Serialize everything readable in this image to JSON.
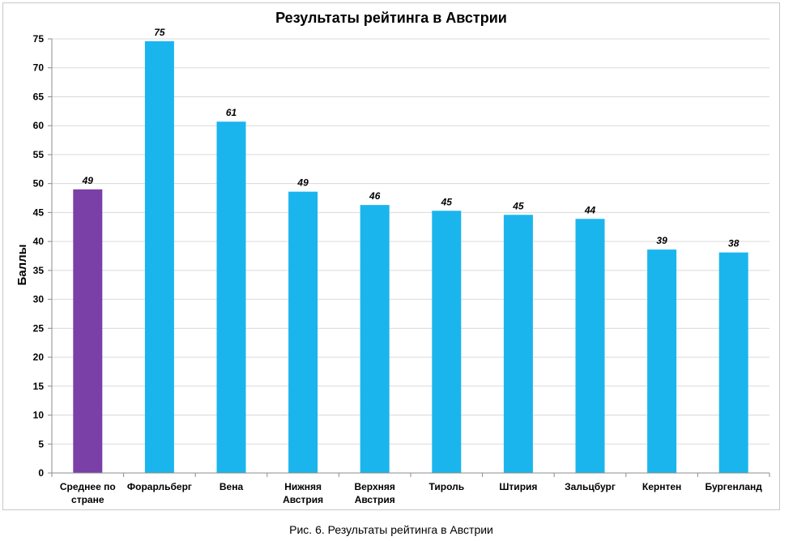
{
  "caption": "Рис. 6. Результаты рейтинга в Австрии",
  "colors": {
    "highlight": "#7b3fa8",
    "bar": "#1bb5ee",
    "grid": "#d9d9d9",
    "axis": "#8c8c8c"
  },
  "chart_data": {
    "type": "bar",
    "title": "Результаты рейтинга в Австрии",
    "xlabel": "",
    "ylabel": "Баллы",
    "ylim": [
      0,
      75
    ],
    "ytick_step": 5,
    "grid": true,
    "categories": [
      [
        "Среднее по",
        "стране"
      ],
      [
        "Форарльберг"
      ],
      [
        "Вена"
      ],
      [
        "Нижняя",
        "Австрия"
      ],
      [
        "Верхняя",
        "Австрия"
      ],
      [
        "Тироль"
      ],
      [
        "Штирия"
      ],
      [
        "Зальцбург"
      ],
      [
        "Кернтен"
      ],
      [
        "Бургенланд"
      ]
    ],
    "values": [
      49,
      74.6,
      60.7,
      48.6,
      46.3,
      45.3,
      44.6,
      43.9,
      38.6,
      38.1
    ],
    "data_labels": [
      "49",
      "75",
      "61",
      "49",
      "46",
      "45",
      "45",
      "44",
      "39",
      "38"
    ],
    "highlight_index": 0
  }
}
